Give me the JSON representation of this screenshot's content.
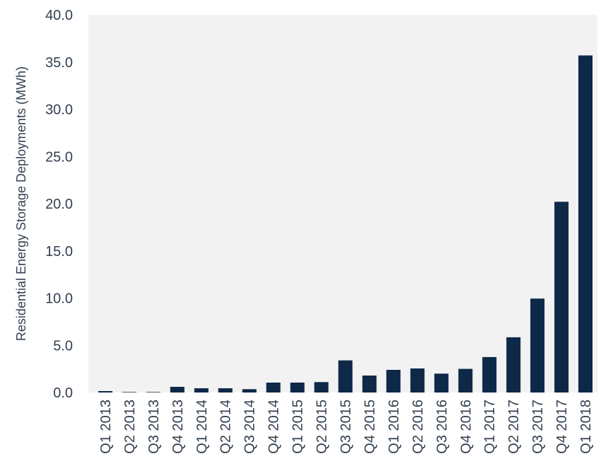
{
  "chart_data": {
    "type": "bar",
    "title": "",
    "xlabel": "",
    "ylabel": "Residential Energy Storage Deployments (MWh)",
    "categories": [
      "Q1 2013",
      "Q2 2013",
      "Q3 2013",
      "Q4 2013",
      "Q1 2014",
      "Q2 2014",
      "Q3 2014",
      "Q4 2014",
      "Q1 2015",
      "Q2 2015",
      "Q3 2015",
      "Q4 2015",
      "Q1 2016",
      "Q2 2016",
      "Q3 2016",
      "Q4 2016",
      "Q1 2017",
      "Q2 2017",
      "Q3 2017",
      "Q4 2017",
      "Q1 2018"
    ],
    "values": [
      0.15,
      0.05,
      0.05,
      0.6,
      0.45,
      0.45,
      0.35,
      1.05,
      1.05,
      1.1,
      3.4,
      1.8,
      2.4,
      2.55,
      2.0,
      2.5,
      3.75,
      5.85,
      9.95,
      20.2,
      35.7
    ],
    "ylim": [
      0,
      40
    ],
    "yticks": [
      "0.0",
      "5.0",
      "10.0",
      "15.0",
      "20.0",
      "25.0",
      "30.0",
      "35.0",
      "40.0"
    ],
    "grid": false,
    "colors": {
      "bar": "#0e2848",
      "plot_background": "#f2f2f2",
      "text": "#333f50"
    }
  }
}
